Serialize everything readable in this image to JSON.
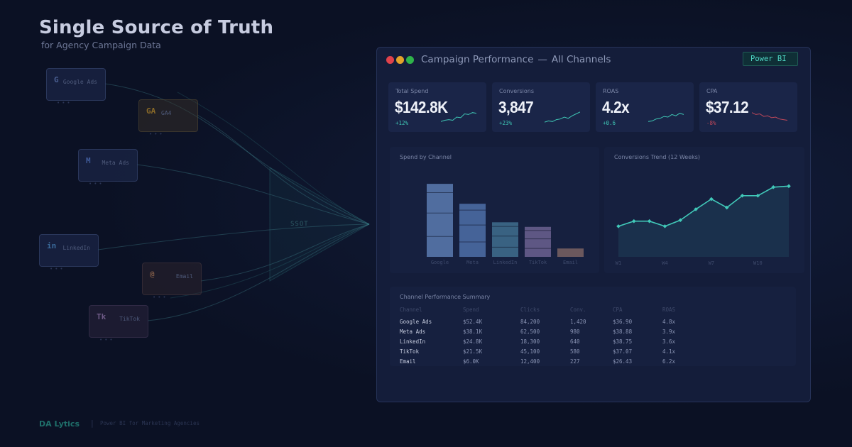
{
  "hero": {
    "title": "Single Source of Truth",
    "subtitle": "for Agency Campaign Data"
  },
  "sources": [
    {
      "icon": "G",
      "label": "Google Ads",
      "color": "#4a5f92"
    },
    {
      "icon": "GA",
      "label": "GA4",
      "color": "#8a6a28"
    },
    {
      "icon": "M",
      "label": "Meta Ads",
      "color": "#3f5a98"
    },
    {
      "icon": "in",
      "label": "LinkedIn",
      "color": "#3a6a9a"
    },
    {
      "icon": "@",
      "label": "Email",
      "color": "#7a5846"
    },
    {
      "icon": "Tk",
      "label": "TikTok",
      "color": "#6e5a86"
    }
  ],
  "hub": {
    "label": "SSOT"
  },
  "window": {
    "title": "Campaign Performance",
    "title_sep": "—",
    "title_scope": "All Channels",
    "badge": "Power BI"
  },
  "kpis": [
    {
      "label": "Total Spend",
      "value": "$142.8K",
      "delta": "+12%",
      "trend": "up",
      "spark": [
        0.15,
        0.25,
        0.3,
        0.25,
        0.5,
        0.45,
        0.75,
        0.7,
        0.85,
        0.8
      ]
    },
    {
      "label": "Conversions",
      "value": "3,847",
      "delta": "+23%",
      "trend": "up",
      "spark": [
        0.1,
        0.2,
        0.15,
        0.3,
        0.35,
        0.5,
        0.4,
        0.6,
        0.75,
        0.9
      ]
    },
    {
      "label": "ROAS",
      "value": "4.2x",
      "delta": "+0.6",
      "trend": "up",
      "spark": [
        0.15,
        0.2,
        0.35,
        0.4,
        0.55,
        0.5,
        0.7,
        0.6,
        0.8,
        0.7
      ]
    },
    {
      "label": "CPA",
      "value": "$37.12",
      "delta": "-8%",
      "trend": "down",
      "spark": [
        0.85,
        0.7,
        0.75,
        0.55,
        0.6,
        0.45,
        0.5,
        0.35,
        0.3,
        0.25
      ]
    }
  ],
  "colors": {
    "accent": "#41c9b9",
    "positive": "#3fc7b5",
    "negative": "#c0485a",
    "bar_google": "#5a7bb0",
    "bar_meta": "#4e70a8",
    "bar_linkedin": "#3f6f8e",
    "bar_tiktok": "#6b6290",
    "bar_email": "#7a6363"
  },
  "chart_data": [
    {
      "type": "bar",
      "title": "Spend by Channel",
      "categories": [
        "Google",
        "Meta",
        "LinkedIn",
        "TikTok",
        "Email"
      ],
      "values": [
        52.4,
        38.1,
        24.8,
        21.5,
        6.0
      ],
      "ylim": [
        0,
        55
      ]
    },
    {
      "type": "line",
      "title": "Conversions Trend (12 Weeks)",
      "x": [
        1,
        2,
        3,
        4,
        5,
        6,
        7,
        8,
        9,
        10,
        11,
        12
      ],
      "x_tick_labels": [
        "W1",
        "W4",
        "W7",
        "W10"
      ],
      "values": [
        230,
        245,
        245,
        230,
        248,
        280,
        310,
        285,
        320,
        320,
        345,
        348
      ],
      "ylim": [
        140,
        380
      ]
    }
  ],
  "table": {
    "title": "Channel Performance Summary",
    "headers": [
      "Channel",
      "Spend",
      "Clicks",
      "Conv.",
      "CPA",
      "ROAS"
    ],
    "rows": [
      [
        "Google Ads",
        "$52.4K",
        "84,200",
        "1,420",
        "$36.90",
        "4.8x"
      ],
      [
        "Meta Ads",
        "$38.1K",
        "62,500",
        "980",
        "$38.88",
        "3.9x"
      ],
      [
        "LinkedIn",
        "$24.8K",
        "18,300",
        "640",
        "$38.75",
        "3.6x"
      ],
      [
        "TikTok",
        "$21.5K",
        "45,100",
        "580",
        "$37.07",
        "4.1x"
      ],
      [
        "Email",
        "$6.0K",
        "12,400",
        "227",
        "$26.43",
        "6.2x"
      ]
    ]
  },
  "footer": {
    "brand": "DA Lytics",
    "separator": "|",
    "tagline": "Power BI for Marketing Agencies"
  }
}
